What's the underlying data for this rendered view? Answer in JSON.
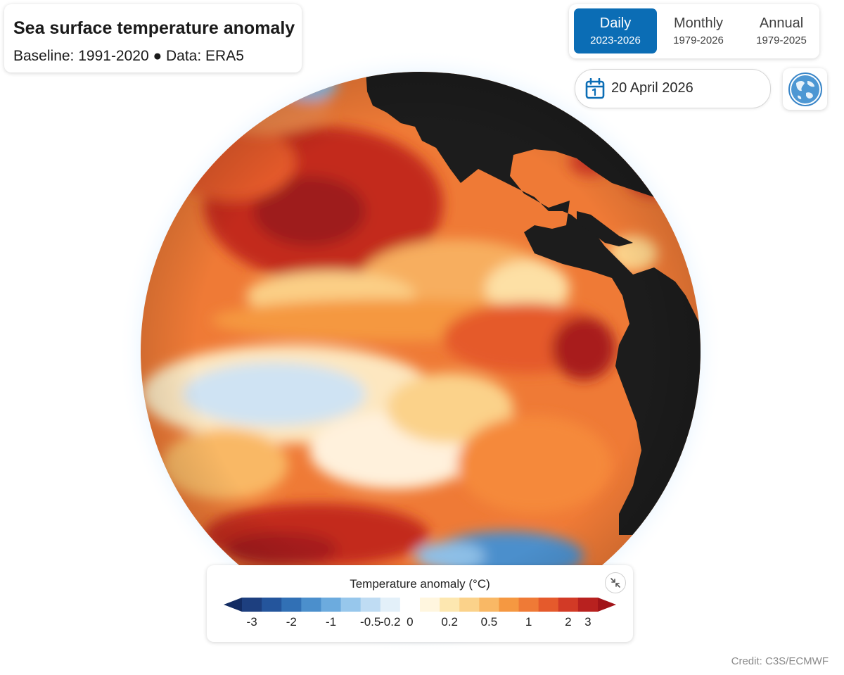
{
  "header": {
    "title": "Sea surface temperature anomaly",
    "subtitle": "Baseline: 1991-2020 ● Data: ERA5"
  },
  "tabs": [
    {
      "label": "Daily",
      "range": "2023-2026",
      "active": true
    },
    {
      "label": "Monthly",
      "range": "1979-2026",
      "active": false
    },
    {
      "label": "Annual",
      "range": "1979-2025",
      "active": false
    }
  ],
  "date": {
    "value": "20 April 2026",
    "icon": "calendar-icon"
  },
  "view_toggle": {
    "icon": "globe-icon"
  },
  "map": {
    "projection": "orthographic",
    "land_color": "#1c1c1c",
    "ocean_base_color": "#ef7a36"
  },
  "legend": {
    "title": "Temperature anomaly (°C)",
    "collapse_icon": "collapse-arrows-icon",
    "ticks": [
      "-3",
      "-2",
      "-1",
      "-0.5",
      "-0.2",
      "0",
      "0.2",
      "0.5",
      "1",
      "2",
      "3"
    ],
    "colors": [
      "#1d3f7f",
      "#24559c",
      "#3170b5",
      "#4b8fcc",
      "#6cabde",
      "#97c7ec",
      "#bfdcf3",
      "#e3f0f9",
      "#ffffff",
      "#fff6df",
      "#fde7b0",
      "#fbd28a",
      "#f9b865",
      "#f59841",
      "#ef7a36",
      "#e55a2c",
      "#d23a26",
      "#b8211f"
    ],
    "under_color": "#132c63",
    "over_color": "#a11419"
  },
  "credit": "Credit: C3S/ECMWF"
}
